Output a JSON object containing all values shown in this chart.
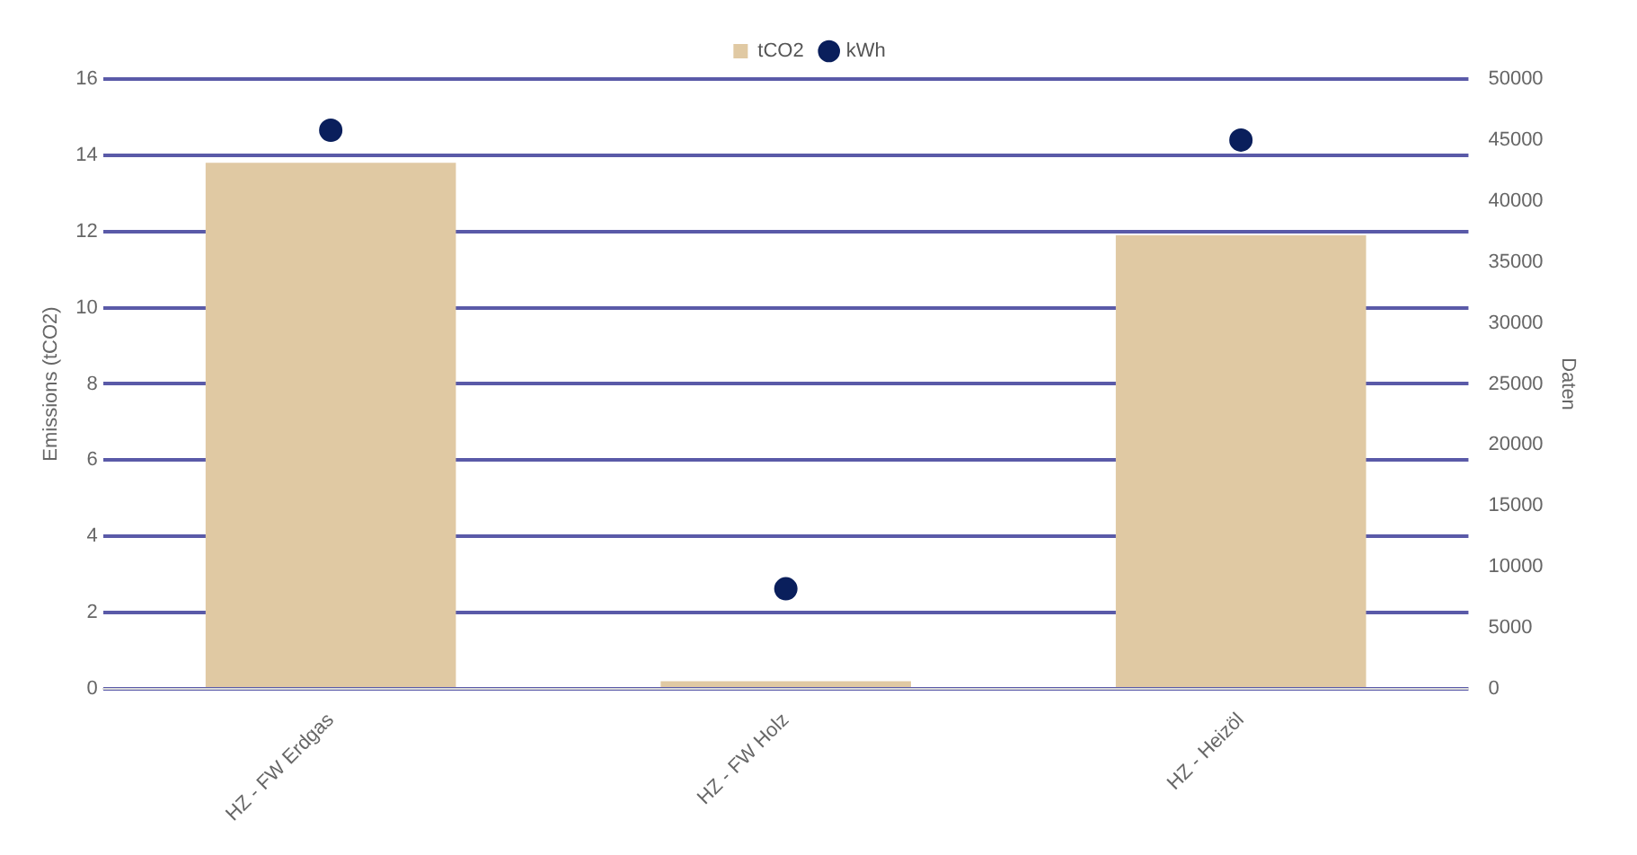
{
  "chart_data": {
    "type": "bar",
    "ylabel": "Emissions (tCO2)",
    "y2label": "Daten",
    "categories": [
      "HZ - FW Erdgas",
      "HZ - FW Holz",
      "HZ - Heizöl"
    ],
    "series": [
      {
        "name": "tCO2",
        "color": "#e0c9a3",
        "values": [
          13.8,
          0.2,
          11.9
        ]
      },
      {
        "name": "kWh",
        "type": "scatter",
        "axis": "y2",
        "color": "#0a1f5c",
        "x": [
          "HZ - FW Erdgas",
          "HZ - FW Holz",
          "HZ - Heizöl"
        ],
        "values": [
          45800,
          8200,
          45000
        ]
      }
    ],
    "ylim": [
      0,
      16
    ],
    "yticks": [
      0,
      2,
      4,
      6,
      8,
      10,
      12,
      14,
      16
    ],
    "y2lim": [
      0,
      50000
    ],
    "y2ticks": [
      0,
      5000,
      10000,
      15000,
      20000,
      25000,
      30000,
      35000,
      40000,
      45000,
      50000
    ],
    "grid": "y",
    "legend": "top",
    "marker": "circle"
  }
}
